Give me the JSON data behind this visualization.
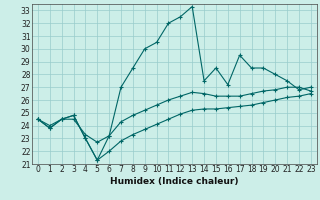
{
  "xlabel": "Humidex (Indice chaleur)",
  "bg_color": "#cceee8",
  "grid_color": "#99cccc",
  "line_color": "#006666",
  "xlim": [
    -0.5,
    23.5
  ],
  "ylim": [
    21,
    33.5
  ],
  "xticks": [
    0,
    1,
    2,
    3,
    4,
    5,
    6,
    7,
    8,
    9,
    10,
    11,
    12,
    13,
    14,
    15,
    16,
    17,
    18,
    19,
    20,
    21,
    22,
    23
  ],
  "yticks": [
    21,
    22,
    23,
    24,
    25,
    26,
    27,
    28,
    29,
    30,
    31,
    32,
    33
  ],
  "line1_y": [
    24.5,
    23.8,
    24.5,
    24.8,
    23.0,
    21.3,
    23.2,
    27.0,
    28.5,
    30.0,
    30.5,
    32.0,
    32.5,
    33.3,
    27.5,
    28.5,
    27.2,
    29.5,
    28.5,
    28.5,
    28.0,
    27.5,
    26.8,
    27.0
  ],
  "line2_y": [
    24.5,
    24.0,
    24.5,
    24.5,
    23.3,
    22.7,
    23.2,
    24.3,
    24.8,
    25.2,
    25.6,
    26.0,
    26.3,
    26.6,
    26.5,
    26.3,
    26.3,
    26.3,
    26.5,
    26.7,
    26.8,
    27.0,
    27.0,
    26.7
  ],
  "line3_y": [
    24.5,
    23.8,
    24.5,
    24.8,
    23.0,
    21.3,
    22.0,
    22.8,
    23.3,
    23.7,
    24.1,
    24.5,
    24.9,
    25.2,
    25.3,
    25.3,
    25.4,
    25.5,
    25.6,
    25.8,
    26.0,
    26.2,
    26.3,
    26.5
  ],
  "marker": "+",
  "markersize": 3,
  "linewidth": 0.8,
  "label_fontsize": 6.5,
  "tick_fontsize": 5.5
}
